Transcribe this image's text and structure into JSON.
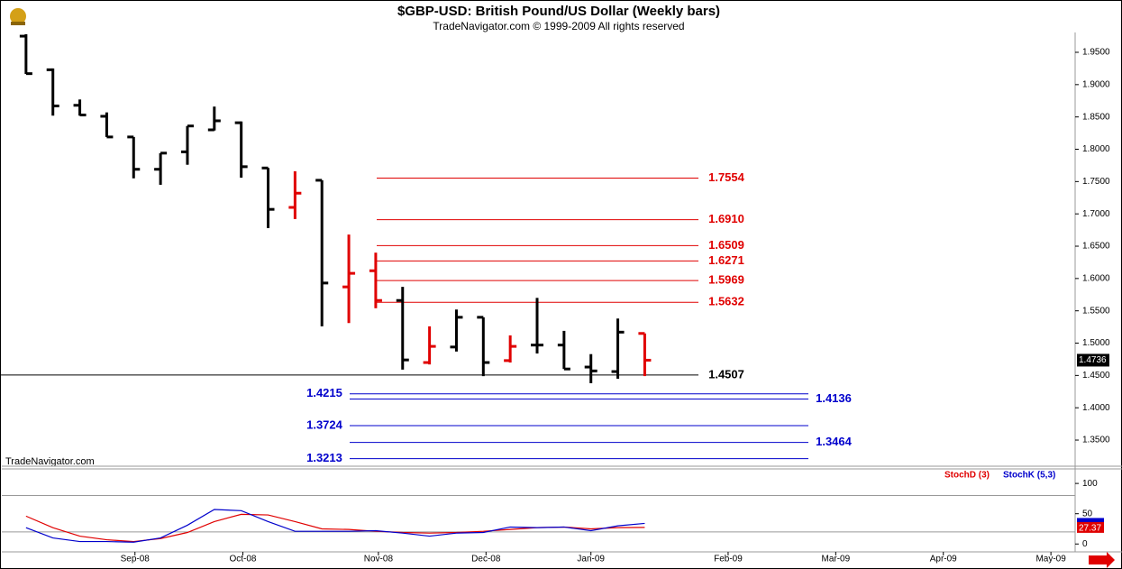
{
  "chart_data": [
    {
      "type": "ohlc",
      "title": "$GBP-USD:  British Pound/US Dollar  (Weekly bars)",
      "subtitle": "TradeNavigator.com © 1999-2009 All rights reserved",
      "watermark": "TradeNavigator.com",
      "x": [
        0,
        1,
        2,
        3,
        4,
        5,
        6,
        7,
        8,
        9,
        10,
        11,
        12,
        13,
        14,
        15,
        16,
        17,
        18,
        19,
        20,
        21,
        22,
        23
      ],
      "open": [
        1.975,
        1.923,
        1.868,
        1.851,
        1.819,
        1.769,
        1.796,
        1.83,
        1.841,
        1.771,
        1.71,
        1.752,
        1.587,
        1.612,
        1.566,
        1.47,
        1.494,
        1.54,
        1.473,
        1.497,
        1.497,
        1.463,
        1.456,
        1.515
      ],
      "high": [
        1.978,
        1.925,
        1.877,
        1.857,
        1.819,
        1.794,
        1.836,
        1.866,
        1.843,
        1.771,
        1.766,
        1.752,
        1.668,
        1.64,
        1.587,
        1.526,
        1.552,
        1.54,
        1.512,
        1.57,
        1.519,
        1.483,
        1.538,
        1.515
      ],
      "low": [
        1.9165,
        1.852,
        1.852,
        1.819,
        1.755,
        1.745,
        1.776,
        1.829,
        1.756,
        1.678,
        1.692,
        1.526,
        1.531,
        1.554,
        1.459,
        1.467,
        1.487,
        1.449,
        1.47,
        1.484,
        1.46,
        1.438,
        1.445,
        1.449
      ],
      "close": [
        1.917,
        1.867,
        1.853,
        1.819,
        1.769,
        1.794,
        1.836,
        1.844,
        1.773,
        1.707,
        1.732,
        1.593,
        1.608,
        1.566,
        1.474,
        1.495,
        1.54,
        1.47,
        1.495,
        1.497,
        1.46,
        1.457,
        1.517,
        1.4736
      ],
      "bar_colors": [
        "#000",
        "#000",
        "#000",
        "#000",
        "#000",
        "#000",
        "#000",
        "#000",
        "#000",
        "#000",
        "#e00000",
        "#000",
        "#e00000",
        "#e00000",
        "#000",
        "#e00000",
        "#000",
        "#000",
        "#e00000",
        "#000",
        "#000",
        "#000",
        "#000",
        "#e00000"
      ],
      "xlim": [
        -0.9,
        39
      ],
      "ylim": [
        1.31,
        1.98
      ],
      "yticks": [
        {
          "value": 1.95,
          "label": "1.9500"
        },
        {
          "value": 1.9,
          "label": "1.9000"
        },
        {
          "value": 1.85,
          "label": "1.8500"
        },
        {
          "value": 1.8,
          "label": "1.8000"
        },
        {
          "value": 1.75,
          "label": "1.7500"
        },
        {
          "value": 1.7,
          "label": "1.7000"
        },
        {
          "value": 1.65,
          "label": "1.6500"
        },
        {
          "value": 1.6,
          "label": "1.6000"
        },
        {
          "value": 1.55,
          "label": "1.5500"
        },
        {
          "value": 1.5,
          "label": "1.5000"
        },
        {
          "value": 1.45,
          "label": "1.4500"
        },
        {
          "value": 1.4,
          "label": "1.4000"
        },
        {
          "value": 1.35,
          "label": "1.3500"
        }
      ],
      "levels": [
        {
          "value": 1.7554,
          "label": "1.7554",
          "color": "#e00000",
          "label_side": "right"
        },
        {
          "value": 1.691,
          "label": "1.6910",
          "color": "#e00000",
          "label_side": "right"
        },
        {
          "value": 1.6509,
          "label": "1.6509",
          "color": "#e00000",
          "label_side": "right"
        },
        {
          "value": 1.6271,
          "label": "1.6271",
          "color": "#e00000",
          "label_side": "right"
        },
        {
          "value": 1.5969,
          "label": "1.5969",
          "color": "#e00000",
          "label_side": "right"
        },
        {
          "value": 1.5632,
          "label": "1.5632",
          "color": "#e00000",
          "label_side": "right"
        },
        {
          "value": 1.4507,
          "label": "1.4507",
          "color": "#000000",
          "label_side": "right"
        },
        {
          "value": 1.4215,
          "label": "1.4215",
          "color": "#0000cc",
          "label_side": "left"
        },
        {
          "value": 1.4136,
          "label": "1.4136",
          "color": "#0000cc",
          "label_side": "right"
        },
        {
          "value": 1.3724,
          "label": "1.3724",
          "color": "#0000cc",
          "label_side": "left"
        },
        {
          "value": 1.3464,
          "label": "1.3464",
          "color": "#0000cc",
          "label_side": "right"
        },
        {
          "value": 1.3213,
          "label": "1.3213",
          "color": "#0000cc",
          "label_side": "left"
        }
      ]
    },
    {
      "type": "line",
      "x": [
        0,
        1,
        2,
        3,
        4,
        5,
        6,
        7,
        8,
        9,
        10,
        11,
        12,
        13,
        14,
        15,
        16,
        17,
        18,
        19,
        20,
        21,
        22,
        23
      ],
      "series": [
        {
          "name": "StochD (3)",
          "color": "#e00000",
          "values": [
            46,
            27,
            13,
            7,
            4,
            9,
            19,
            37,
            49,
            48,
            37,
            25,
            24,
            21,
            19,
            18,
            19,
            21,
            24,
            27,
            28,
            25,
            27,
            27.37
          ]
        },
        {
          "name": "StochK (5,3)",
          "color": "#0000cc",
          "values": [
            27,
            10,
            4,
            4,
            3,
            10,
            31,
            57,
            55,
            37,
            21,
            21,
            21,
            22,
            18,
            13,
            18,
            19,
            28,
            27,
            28,
            22,
            30,
            34
          ]
        }
      ],
      "xlim": [
        -0.9,
        39
      ],
      "xticks": [
        {
          "value": 4.05,
          "label": "Sep-08"
        },
        {
          "value": 8.06,
          "label": "Oct-08"
        },
        {
          "value": 13.1,
          "label": "Nov-08"
        },
        {
          "value": 17.1,
          "label": "Dec-08"
        },
        {
          "value": 21,
          "label": "Jan-09"
        },
        {
          "value": 26.1,
          "label": "Feb-09"
        },
        {
          "value": 30.1,
          "label": "Mar-09"
        },
        {
          "value": 34.1,
          "label": "Apr-09"
        },
        {
          "value": 38.1,
          "label": "May-09"
        }
      ],
      "ylim": [
        -13,
        124
      ],
      "yticks": [
        0,
        50,
        100
      ],
      "guide_lines": [
        20,
        80
      ]
    }
  ]
}
